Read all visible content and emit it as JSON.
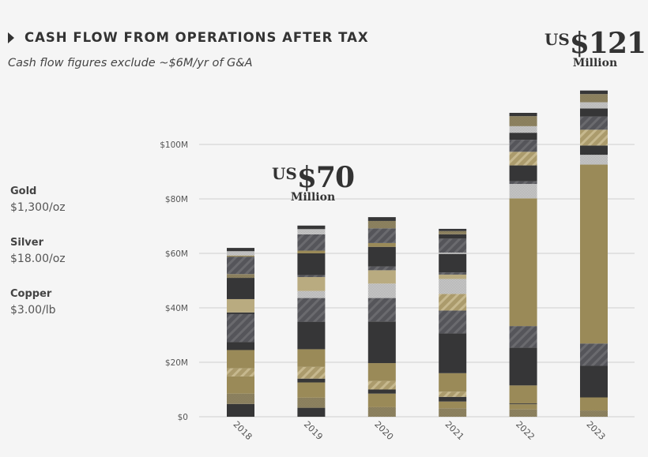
{
  "header": {
    "title": "CASH FLOW FROM OPERATIONS AFTER TAX",
    "subtitle": "Cash flow figures exclude ~$6M/yr of G&A",
    "icon": "triangle-right-icon"
  },
  "prices": [
    {
      "name": "Gold",
      "value": "$1,300/oz"
    },
    {
      "name": "Silver",
      "value": "$18.00/oz"
    },
    {
      "name": "Copper",
      "value": "$3.00/lb"
    }
  ],
  "callouts": [
    {
      "prefix": "US",
      "amount": "$70",
      "unit": "Million"
    },
    {
      "prefix": "US",
      "amount": "$121",
      "unit": "Million"
    }
  ],
  "colors": {
    "dark": "#363637",
    "olive": "#9a8a58",
    "khaki": "#b9ab80",
    "hatched_gray": "#5c5c60",
    "hatched_khaki": "#b5a57a",
    "checker_olive": "#8a7e5e",
    "checker_light": "#bdbdbd"
  },
  "chart_data": {
    "type": "bar",
    "stacked": true,
    "categories": [
      "2018",
      "2019",
      "2020",
      "2021",
      "2022",
      "2023"
    ],
    "ylim": [
      0,
      120
    ],
    "yticks": [
      0,
      20,
      40,
      60,
      80,
      100
    ],
    "ytick_labels": [
      "$0",
      "$20M",
      "$40M",
      "$60M",
      "$80M",
      "$100M"
    ],
    "grid": true,
    "unit": "US$ millions",
    "stacks": [
      [
        [
          "dark",
          4.7
        ],
        [
          "checker_olive",
          3.8
        ],
        [
          "olive",
          6.3
        ],
        [
          "hatched_khaki",
          3.0
        ],
        [
          "olive",
          6.7
        ],
        [
          "dark",
          2.9
        ],
        [
          "hatched_gray",
          10.3
        ],
        [
          "dark",
          0.6
        ],
        [
          "khaki",
          4.9
        ],
        [
          "dark",
          7.8
        ],
        [
          "checker_olive",
          1.4
        ],
        [
          "hatched_gray",
          6.4
        ],
        [
          "olive",
          0.4
        ],
        [
          "checker_light",
          1.6
        ],
        [
          "dark",
          1.2
        ]
      ],
      [
        [
          "dark",
          3.3
        ],
        [
          "checker_olive",
          3.7
        ],
        [
          "olive",
          5.6
        ],
        [
          "dark",
          1.4
        ],
        [
          "hatched_khaki",
          4.3
        ],
        [
          "olive",
          6.5
        ],
        [
          "dark",
          10.1
        ],
        [
          "hatched_gray",
          8.7
        ],
        [
          "checker_light",
          2.6
        ],
        [
          "khaki",
          5.1
        ],
        [
          "hatched_gray",
          0.7
        ],
        [
          "dark",
          8.0
        ],
        [
          "olive",
          1.0
        ],
        [
          "hatched_gray",
          6.0
        ],
        [
          "checker_light",
          1.9
        ],
        [
          "dark",
          1.3
        ]
      ],
      [
        [
          "checker_olive",
          3.5
        ],
        [
          "olive",
          5.0
        ],
        [
          "dark",
          1.5
        ],
        [
          "hatched_khaki",
          3.1
        ],
        [
          "olive",
          6.6
        ],
        [
          "dark",
          15.3
        ],
        [
          "hatched_gray",
          8.6
        ],
        [
          "checker_light",
          5.3
        ],
        [
          "khaki",
          4.9
        ],
        [
          "hatched_gray",
          1.4
        ],
        [
          "dark",
          7.2
        ],
        [
          "olive",
          1.4
        ],
        [
          "hatched_gray",
          5.4
        ],
        [
          "checker_olive",
          2.7
        ],
        [
          "dark",
          1.4
        ]
      ],
      [
        [
          "checker_olive",
          3.1
        ],
        [
          "olive",
          2.5
        ],
        [
          "dark",
          1.7
        ],
        [
          "hatched_khaki",
          1.9
        ],
        [
          "olive",
          6.8
        ],
        [
          "dark",
          14.6
        ],
        [
          "hatched_gray",
          8.4
        ],
        [
          "hatched_khaki",
          6.1
        ],
        [
          "checker_light",
          5.5
        ],
        [
          "khaki",
          1.6
        ],
        [
          "hatched_gray",
          0.8
        ],
        [
          "dark",
          6.8
        ],
        [
          "checker_light",
          0.5
        ],
        [
          "hatched_gray",
          5.1
        ],
        [
          "dark",
          1.6
        ],
        [
          "checker_olive",
          1.2
        ],
        [
          "dark",
          0.8
        ]
      ],
      [
        [
          "checker_olive",
          2.7
        ],
        [
          "olive",
          1.9
        ],
        [
          "dark",
          0.3
        ],
        [
          "olive",
          6.6
        ],
        [
          "dark",
          13.9
        ],
        [
          "hatched_gray",
          7.9
        ],
        [
          "olive",
          46.9
        ],
        [
          "checker_light",
          5.3
        ],
        [
          "hatched_gray",
          1.0
        ],
        [
          "dark",
          5.8
        ],
        [
          "hatched_khaki",
          5.0
        ],
        [
          "hatched_gray",
          4.4
        ],
        [
          "dark",
          2.6
        ],
        [
          "checker_light",
          2.4
        ],
        [
          "checker_olive",
          3.7
        ],
        [
          "dark",
          1.2
        ]
      ],
      [
        [
          "checker_olive",
          2.3
        ],
        [
          "olive",
          4.8
        ],
        [
          "dark",
          11.6
        ],
        [
          "hatched_gray",
          8.2
        ],
        [
          "olive",
          65.7
        ],
        [
          "checker_light",
          3.6
        ],
        [
          "dark",
          3.4
        ],
        [
          "hatched_khaki",
          5.8
        ],
        [
          "hatched_gray",
          4.8
        ],
        [
          "dark",
          3.0
        ],
        [
          "checker_light",
          2.3
        ],
        [
          "checker_olive",
          3.0
        ],
        [
          "dark",
          1.3
        ]
      ]
    ]
  }
}
